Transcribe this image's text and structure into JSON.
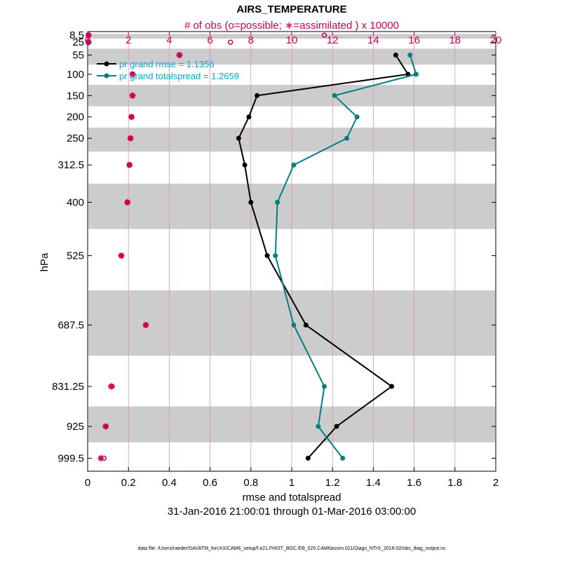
{
  "chart_data": {
    "type": "line",
    "title": "AIRS_TEMPERATURE",
    "top_axis_label": "# of obs (o=possible; ∗=assimilated ) x 10000",
    "top_ticks": [
      "0",
      "2",
      "4",
      "6",
      "8",
      "10",
      "12",
      "14",
      "16",
      "18",
      "20"
    ],
    "top_range": [
      0,
      20
    ],
    "xlabel": "rmse and totalspread",
    "x_ticks": [
      "0",
      "0.2",
      "0.4",
      "0.6",
      "0.8",
      "1",
      "1.2",
      "1.4",
      "1.6",
      "1.8",
      "2"
    ],
    "xlim": [
      0,
      2
    ],
    "ylabel": "hPa",
    "date_range": "31-Jan-2016 21:00:01 through 01-Mar-2016 03:00:00",
    "footer": "data file: /Users/raeder/DAI/ATM_forcXX/CAM6_setup/f.e21.FHIST_BGC.f09_025.CAM6assim.011/Diags_NTrS_2016-02/obs_diag_output.nc",
    "levels": [
      "8.5",
      "25",
      "55",
      "100",
      "150",
      "200",
      "250",
      "312.5",
      "400",
      "525",
      "687.5",
      "831.25",
      "925",
      "999.5"
    ],
    "level_values": [
      8.5,
      25,
      55,
      100,
      150,
      200,
      250,
      312.5,
      400,
      525,
      687.5,
      831.25,
      925,
      999.5
    ],
    "series": [
      {
        "name": "rmse",
        "legend": "pr grand rmse = 1.1356",
        "color": "#000000",
        "values": [
          null,
          null,
          1.51,
          1.57,
          0.83,
          0.79,
          0.74,
          0.77,
          0.8,
          0.88,
          1.07,
          1.49,
          1.22,
          1.08
        ]
      },
      {
        "name": "totalspread",
        "legend": "pr grand totalspread = 1.2659",
        "color": "#008080",
        "values": [
          null,
          null,
          1.58,
          1.61,
          1.21,
          1.32,
          1.27,
          1.01,
          0.93,
          0.92,
          1.01,
          1.16,
          1.13,
          1.25
        ]
      }
    ],
    "obs_possible": [
      0.04,
      0.04,
      4.5,
      2.2,
      2.2,
      2.15,
      2.1,
      2.05,
      1.95,
      1.65,
      2.85,
      1.2,
      0.9,
      0.8
    ],
    "obs_possible_extra": [
      {
        "level_index": 0,
        "value": 11.6
      },
      {
        "level_index": 1,
        "value": 7.0
      }
    ],
    "obs_assimilated": [
      0.04,
      0.04,
      4.5,
      2.2,
      2.2,
      2.15,
      2.1,
      2.05,
      1.95,
      1.65,
      2.85,
      1.15,
      0.88,
      0.65
    ],
    "obs_color": "#cc0055"
  }
}
